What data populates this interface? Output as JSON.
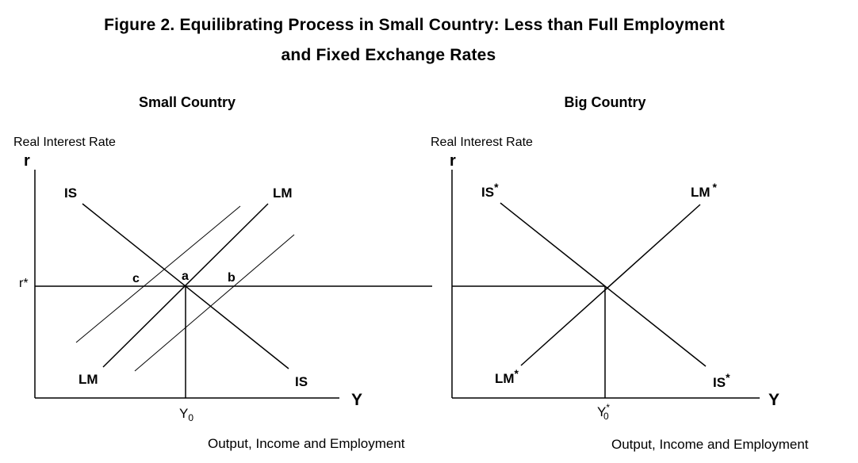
{
  "figure": {
    "title_line1": "Figure 2.  Equilibrating Process in Small Country:  Less than Full Employment",
    "title_line2": "and Fixed Exchange Rates"
  },
  "small_country": {
    "heading": "Small Country",
    "y_axis_title": "Real Interest Rate",
    "y_axis_symbol": "r",
    "x_axis_symbol": "Y",
    "x_axis_title": "Output, Income and Employment",
    "r_star_label": "r*",
    "y0_label": "Y",
    "y0_subscript": "0",
    "is_top": "IS",
    "is_bottom": "IS",
    "lm_top": "LM",
    "lm_bottom": "LM",
    "point_a": "a",
    "point_b": "b",
    "point_c": "c"
  },
  "big_country": {
    "heading": "Big Country",
    "y_axis_title": "Real Interest Rate",
    "y_axis_symbol": "r",
    "x_axis_symbol": "Y",
    "x_axis_title": "Output, Income and Employment",
    "y0_label": "Y",
    "y0_subscript": "0",
    "y0_superscript": "*",
    "is_top": "IS",
    "is_bottom": "IS",
    "lm_top": "LM",
    "lm_bottom": "LM",
    "star": "*"
  }
}
